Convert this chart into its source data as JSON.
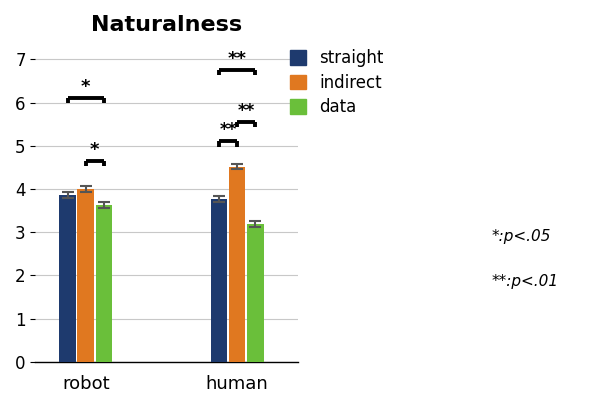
{
  "title": "Naturalness",
  "groups": [
    "robot",
    "human"
  ],
  "series": [
    "straight",
    "indirect",
    "data"
  ],
  "values": {
    "robot": [
      3.87,
      4.01,
      3.63
    ],
    "human": [
      3.77,
      4.52,
      3.18
    ]
  },
  "errors": {
    "robot": [
      0.07,
      0.07,
      0.07
    ],
    "human": [
      0.07,
      0.06,
      0.07
    ]
  },
  "colors": [
    "#1e3a6e",
    "#e07820",
    "#6abf3a"
  ],
  "ylim": [
    0,
    7.4
  ],
  "yticks": [
    0,
    1,
    2,
    3,
    4,
    5,
    6,
    7
  ],
  "bar_width": 0.18,
  "group_centers": [
    1.0,
    2.5
  ],
  "legend_labels": [
    "straight",
    "indirect",
    "data"
  ],
  "sig_note_1": "*:p<.05",
  "sig_note_2": "**:p<.01"
}
